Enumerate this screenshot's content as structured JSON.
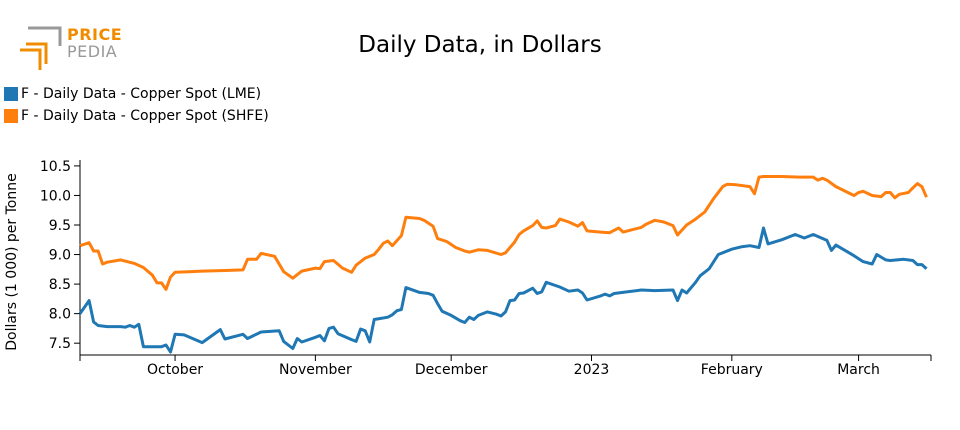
{
  "logo": {
    "word1": "PRICE",
    "word2": "PEDIA"
  },
  "colors": {
    "lme": "#1f77b4",
    "shfe": "#ff7f0e",
    "logo_orange": "#f08c00",
    "logo_gray": "#999999"
  },
  "chart_data": {
    "type": "line",
    "title": "Daily Data, in Dollars",
    "xlabel": "",
    "ylabel": "Dollars (1 000) per Tonne",
    "ylim": [
      7.3,
      10.6
    ],
    "xlim": [
      "2022-09-10",
      "2023-03-17"
    ],
    "yticks": [
      7.5,
      8.0,
      8.5,
      9.0,
      9.5,
      10.0,
      10.5
    ],
    "ytick_labels": [
      "7.5",
      "8.0",
      "8.5",
      "9.0",
      "9.5",
      "10.0",
      "10.5"
    ],
    "xticks": [
      {
        "date": "2022-10-01",
        "label": "October"
      },
      {
        "date": "2022-11-01",
        "label": "November"
      },
      {
        "date": "2022-12-01",
        "label": "December"
      },
      {
        "date": "2023-01-01",
        "label": "2023"
      },
      {
        "date": "2023-02-01",
        "label": "February"
      },
      {
        "date": "2023-03-01",
        "label": "March"
      }
    ],
    "grid": false,
    "legend": "top-left",
    "series": [
      {
        "name": "F - Daily Data - Copper Spot (LME)",
        "color": "#1f77b4",
        "points": [
          [
            "2022-09-10",
            8.0
          ],
          [
            "2022-09-12",
            8.22
          ],
          [
            "2022-09-13",
            7.86
          ],
          [
            "2022-09-14",
            7.8
          ],
          [
            "2022-09-16",
            7.78
          ],
          [
            "2022-09-19",
            7.78
          ],
          [
            "2022-09-20",
            7.77
          ],
          [
            "2022-09-21",
            7.8
          ],
          [
            "2022-09-22",
            7.77
          ],
          [
            "2022-09-23",
            7.82
          ],
          [
            "2022-09-24",
            7.44
          ],
          [
            "2022-09-27",
            7.44
          ],
          [
            "2022-09-28",
            7.44
          ],
          [
            "2022-09-29",
            7.47
          ],
          [
            "2022-09-30",
            7.35
          ],
          [
            "2022-10-01",
            7.65
          ],
          [
            "2022-10-03",
            7.64
          ],
          [
            "2022-10-07",
            7.51
          ],
          [
            "2022-10-11",
            7.73
          ],
          [
            "2022-10-12",
            7.57
          ],
          [
            "2022-10-16",
            7.65
          ],
          [
            "2022-10-17",
            7.58
          ],
          [
            "2022-10-20",
            7.69
          ],
          [
            "2022-10-24",
            7.71
          ],
          [
            "2022-10-25",
            7.53
          ],
          [
            "2022-10-27",
            7.41
          ],
          [
            "2022-10-28",
            7.58
          ],
          [
            "2022-10-29",
            7.52
          ],
          [
            "2022-11-01",
            7.6
          ],
          [
            "2022-11-02",
            7.63
          ],
          [
            "2022-11-03",
            7.54
          ],
          [
            "2022-11-04",
            7.75
          ],
          [
            "2022-11-05",
            7.77
          ],
          [
            "2022-11-06",
            7.66
          ],
          [
            "2022-11-09",
            7.56
          ],
          [
            "2022-11-10",
            7.53
          ],
          [
            "2022-11-11",
            7.74
          ],
          [
            "2022-11-12",
            7.71
          ],
          [
            "2022-11-13",
            7.52
          ],
          [
            "2022-11-14",
            7.9
          ],
          [
            "2022-11-17",
            7.94
          ],
          [
            "2022-11-18",
            7.98
          ],
          [
            "2022-11-19",
            8.05
          ],
          [
            "2022-11-20",
            8.07
          ],
          [
            "2022-11-21",
            8.44
          ],
          [
            "2022-11-24",
            8.36
          ],
          [
            "2022-11-26",
            8.34
          ],
          [
            "2022-11-27",
            8.31
          ],
          [
            "2022-11-28",
            8.17
          ],
          [
            "2022-11-29",
            8.04
          ],
          [
            "2022-12-01",
            7.97
          ],
          [
            "2022-12-03",
            7.88
          ],
          [
            "2022-12-04",
            7.85
          ],
          [
            "2022-12-05",
            7.94
          ],
          [
            "2022-12-06",
            7.9
          ],
          [
            "2022-12-07",
            7.97
          ],
          [
            "2022-12-09",
            8.03
          ],
          [
            "2022-12-11",
            7.99
          ],
          [
            "2022-12-12",
            7.96
          ],
          [
            "2022-12-13",
            8.03
          ],
          [
            "2022-12-14",
            8.22
          ],
          [
            "2022-12-15",
            8.23
          ],
          [
            "2022-12-16",
            8.34
          ],
          [
            "2022-12-17",
            8.35
          ],
          [
            "2022-12-19",
            8.43
          ],
          [
            "2022-12-20",
            8.34
          ],
          [
            "2022-12-21",
            8.37
          ],
          [
            "2022-12-22",
            8.53
          ],
          [
            "2022-12-25",
            8.45
          ],
          [
            "2022-12-27",
            8.38
          ],
          [
            "2022-12-29",
            8.4
          ],
          [
            "2022-12-30",
            8.35
          ],
          [
            "2022-12-31",
            8.23
          ],
          [
            "2023-01-03",
            8.3
          ],
          [
            "2023-01-04",
            8.33
          ],
          [
            "2023-01-05",
            8.3
          ],
          [
            "2023-01-06",
            8.34
          ],
          [
            "2023-01-09",
            8.37
          ],
          [
            "2023-01-12",
            8.4
          ],
          [
            "2023-01-15",
            8.39
          ],
          [
            "2023-01-19",
            8.4
          ],
          [
            "2023-01-20",
            8.22
          ],
          [
            "2023-01-21",
            8.4
          ],
          [
            "2023-01-22",
            8.35
          ],
          [
            "2023-01-24",
            8.53
          ],
          [
            "2023-01-25",
            8.64
          ],
          [
            "2023-01-27",
            8.76
          ],
          [
            "2023-01-29",
            9.0
          ],
          [
            "2023-02-01",
            9.09
          ],
          [
            "2023-02-03",
            9.13
          ],
          [
            "2023-02-05",
            9.15
          ],
          [
            "2023-02-07",
            9.12
          ],
          [
            "2023-02-08",
            9.45
          ],
          [
            "2023-02-09",
            9.18
          ],
          [
            "2023-02-12",
            9.25
          ],
          [
            "2023-02-15",
            9.34
          ],
          [
            "2023-02-17",
            9.28
          ],
          [
            "2023-02-19",
            9.34
          ],
          [
            "2023-02-22",
            9.24
          ],
          [
            "2023-02-23",
            9.07
          ],
          [
            "2023-02-24",
            9.16
          ],
          [
            "2023-02-28",
            8.98
          ],
          [
            "2023-03-02",
            8.88
          ],
          [
            "2023-03-04",
            8.84
          ],
          [
            "2023-03-05",
            9.0
          ],
          [
            "2023-03-07",
            8.91
          ],
          [
            "2023-03-08",
            8.9
          ],
          [
            "2023-03-11",
            8.92
          ],
          [
            "2023-03-13",
            8.9
          ],
          [
            "2023-03-14",
            8.83
          ],
          [
            "2023-03-15",
            8.83
          ],
          [
            "2023-03-16",
            8.76
          ]
        ]
      },
      {
        "name": "F - Daily Data - Copper Spot (SHFE)",
        "color": "#ff7f0e",
        "points": [
          [
            "2022-09-10",
            9.15
          ],
          [
            "2022-09-12",
            9.2
          ],
          [
            "2022-09-13",
            9.06
          ],
          [
            "2022-09-14",
            9.06
          ],
          [
            "2022-09-15",
            8.84
          ],
          [
            "2022-09-16",
            8.87
          ],
          [
            "2022-09-19",
            8.91
          ],
          [
            "2022-09-22",
            8.85
          ],
          [
            "2022-09-24",
            8.78
          ],
          [
            "2022-09-26",
            8.65
          ],
          [
            "2022-09-27",
            8.52
          ],
          [
            "2022-09-28",
            8.52
          ],
          [
            "2022-09-29",
            8.41
          ],
          [
            "2022-09-30",
            8.62
          ],
          [
            "2022-10-01",
            8.7
          ],
          [
            "2022-10-04",
            8.71
          ],
          [
            "2022-10-07",
            8.72
          ],
          [
            "2022-10-12",
            8.73
          ],
          [
            "2022-10-16",
            8.74
          ],
          [
            "2022-10-17",
            8.92
          ],
          [
            "2022-10-19",
            8.92
          ],
          [
            "2022-10-20",
            9.02
          ],
          [
            "2022-10-23",
            8.97
          ],
          [
            "2022-10-25",
            8.71
          ],
          [
            "2022-10-27",
            8.6
          ],
          [
            "2022-10-29",
            8.72
          ],
          [
            "2022-11-01",
            8.77
          ],
          [
            "2022-11-02",
            8.76
          ],
          [
            "2022-11-03",
            8.88
          ],
          [
            "2022-11-05",
            8.9
          ],
          [
            "2022-11-07",
            8.77
          ],
          [
            "2022-11-09",
            8.7
          ],
          [
            "2022-11-10",
            8.82
          ],
          [
            "2022-11-12",
            8.94
          ],
          [
            "2022-11-14",
            9.0
          ],
          [
            "2022-11-15",
            9.09
          ],
          [
            "2022-11-16",
            9.19
          ],
          [
            "2022-11-17",
            9.23
          ],
          [
            "2022-11-18",
            9.15
          ],
          [
            "2022-11-20",
            9.32
          ],
          [
            "2022-11-21",
            9.63
          ],
          [
            "2022-11-24",
            9.61
          ],
          [
            "2022-11-25",
            9.58
          ],
          [
            "2022-11-27",
            9.48
          ],
          [
            "2022-11-28",
            9.27
          ],
          [
            "2022-11-30",
            9.22
          ],
          [
            "2022-12-02",
            9.12
          ],
          [
            "2022-12-04",
            9.06
          ],
          [
            "2022-12-05",
            9.04
          ],
          [
            "2022-12-07",
            9.08
          ],
          [
            "2022-12-09",
            9.07
          ],
          [
            "2022-12-12",
            9.0
          ],
          [
            "2022-12-13",
            9.03
          ],
          [
            "2022-12-15",
            9.21
          ],
          [
            "2022-12-16",
            9.34
          ],
          [
            "2022-12-17",
            9.4
          ],
          [
            "2022-12-19",
            9.49
          ],
          [
            "2022-12-20",
            9.57
          ],
          [
            "2022-12-21",
            9.46
          ],
          [
            "2022-12-22",
            9.45
          ],
          [
            "2022-12-24",
            9.49
          ],
          [
            "2022-12-25",
            9.6
          ],
          [
            "2022-12-27",
            9.55
          ],
          [
            "2022-12-29",
            9.48
          ],
          [
            "2022-12-30",
            9.54
          ],
          [
            "2022-12-31",
            9.4
          ],
          [
            "2023-01-03",
            9.38
          ],
          [
            "2023-01-05",
            9.37
          ],
          [
            "2023-01-07",
            9.45
          ],
          [
            "2023-01-08",
            9.38
          ],
          [
            "2023-01-10",
            9.42
          ],
          [
            "2023-01-12",
            9.46
          ],
          [
            "2023-01-13",
            9.51
          ],
          [
            "2023-01-15",
            9.58
          ],
          [
            "2023-01-17",
            9.55
          ],
          [
            "2023-01-19",
            9.49
          ],
          [
            "2023-01-20",
            9.33
          ],
          [
            "2023-01-22",
            9.5
          ],
          [
            "2023-01-24",
            9.6
          ],
          [
            "2023-01-26",
            9.72
          ],
          [
            "2023-01-28",
            9.95
          ],
          [
            "2023-01-30",
            10.15
          ],
          [
            "2023-01-31",
            10.19
          ],
          [
            "2023-02-02",
            10.18
          ],
          [
            "2023-02-05",
            10.15
          ],
          [
            "2023-02-06",
            10.03
          ],
          [
            "2023-02-07",
            10.31
          ],
          [
            "2023-02-08",
            10.32
          ],
          [
            "2023-02-12",
            10.32
          ],
          [
            "2023-02-16",
            10.31
          ],
          [
            "2023-02-19",
            10.31
          ],
          [
            "2023-02-20",
            10.26
          ],
          [
            "2023-02-21",
            10.29
          ],
          [
            "2023-02-22",
            10.26
          ],
          [
            "2023-02-24",
            10.15
          ],
          [
            "2023-02-28",
            10.0
          ],
          [
            "2023-03-01",
            10.05
          ],
          [
            "2023-03-02",
            10.07
          ],
          [
            "2023-03-04",
            10.0
          ],
          [
            "2023-03-06",
            9.98
          ],
          [
            "2023-03-07",
            10.05
          ],
          [
            "2023-03-08",
            10.05
          ],
          [
            "2023-03-09",
            9.96
          ],
          [
            "2023-03-10",
            10.02
          ],
          [
            "2023-03-12",
            10.05
          ],
          [
            "2023-03-13",
            10.13
          ],
          [
            "2023-03-14",
            10.2
          ],
          [
            "2023-03-15",
            10.15
          ],
          [
            "2023-03-16",
            9.97
          ]
        ]
      }
    ]
  }
}
